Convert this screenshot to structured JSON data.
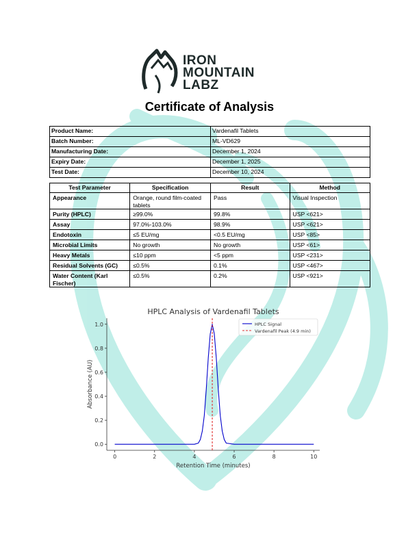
{
  "logo": {
    "lines": [
      "IRON",
      "MOUNTAIN",
      "LABZ"
    ],
    "color": "#1e2a2a"
  },
  "title": "Certificate of Analysis",
  "info": [
    {
      "label": "Product Name:",
      "value": "Vardenafil Tablets"
    },
    {
      "label": "Batch Number:",
      "value": "ML-VD629"
    },
    {
      "label": "Manufacturing Date:",
      "value": "December 1, 2024"
    },
    {
      "label": "Expiry Date:",
      "value": "December 1, 2025"
    },
    {
      "label": "Test Date:",
      "value": "December 10, 2024"
    }
  ],
  "tests": {
    "headers": [
      "Test Parameter",
      "Specification",
      "Result",
      "Method"
    ],
    "rows": [
      [
        "Appearance",
        "Orange, round film-coated tablets",
        "Pass",
        "Visual Inspection"
      ],
      [
        "Purity (HPLC)",
        "≥99.0%",
        "99.8%",
        "USP <621>"
      ],
      [
        "Assay",
        "97.0%-103.0%",
        "98.9%",
        "USP <621>"
      ],
      [
        "Endotoxin",
        "≤5 EU/mg",
        "<0.5 EU/mg",
        "USP <85>"
      ],
      [
        "Microbial Limits",
        "No growth",
        "No growth",
        "USP <61>"
      ],
      [
        "Heavy Metals",
        "≤10 ppm",
        "<5 ppm",
        "USP <231>"
      ],
      [
        "Residual Solvents (GC)",
        "≤0.5%",
        "0.1%",
        "USP <467>"
      ],
      [
        "Water Content (Karl Fischer)",
        "≤0.5%",
        "0.2%",
        "USP <921>"
      ]
    ]
  },
  "watermark_color": "#b6ece4",
  "chart_data": {
    "type": "line",
    "title": "HPLC Analysis of Vardenafil Tablets",
    "xlabel": "Retention Time (minutes)",
    "ylabel": "Absorbance (AU)",
    "xlim": [
      -0.4,
      10.3
    ],
    "ylim": [
      -0.05,
      1.05
    ],
    "xticks": [
      0,
      2,
      4,
      6,
      8,
      10
    ],
    "yticks": [
      0.0,
      0.2,
      0.4,
      0.6,
      0.8,
      1.0
    ],
    "ytick_labels": [
      "0.0",
      "0.2",
      "0.4",
      "0.6",
      "0.8",
      "1.0"
    ],
    "grid": false,
    "legend_placement": "top-right",
    "series": [
      {
        "name": "HPLC Signal",
        "color": "#0000cc",
        "x": [
          0,
          1,
          2,
          3,
          4,
          4.2,
          4.3,
          4.4,
          4.5,
          4.6,
          4.7,
          4.8,
          4.9,
          5.0,
          5.1,
          5.2,
          5.3,
          5.4,
          5.5,
          5.6,
          6,
          7,
          8,
          9,
          10
        ],
        "y": [
          0,
          0,
          0,
          0,
          0.0,
          0.01,
          0.04,
          0.11,
          0.24,
          0.46,
          0.72,
          0.92,
          1.0,
          0.92,
          0.72,
          0.46,
          0.24,
          0.11,
          0.04,
          0.01,
          0,
          0,
          0,
          0,
          0
        ]
      }
    ],
    "vlines": [
      {
        "name": "Vardenafil Peak (4.9 min)",
        "x": 4.9,
        "color": "#e03030",
        "style": "dashed"
      }
    ]
  }
}
